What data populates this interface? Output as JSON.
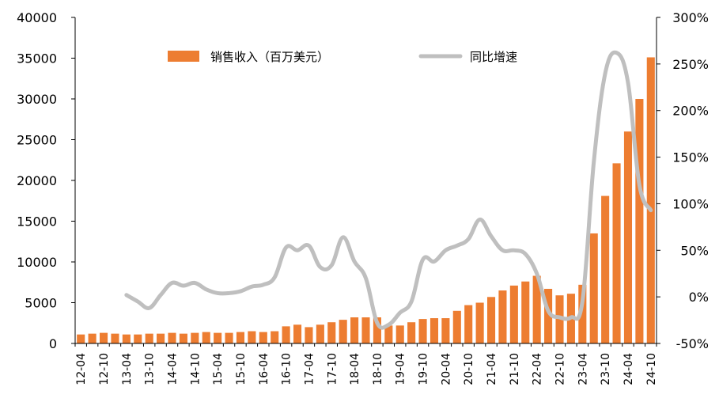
{
  "chart_data": {
    "type": "bar+line",
    "title": "",
    "categories": [
      "12-04",
      "12-07",
      "12-10",
      "13-01",
      "13-04",
      "13-07",
      "13-10",
      "14-01",
      "14-04",
      "14-07",
      "14-10",
      "15-01",
      "15-04",
      "15-07",
      "15-10",
      "16-01",
      "16-04",
      "16-07",
      "16-10",
      "17-01",
      "17-04",
      "17-07",
      "17-10",
      "18-01",
      "18-04",
      "18-07",
      "18-10",
      "19-01",
      "19-04",
      "19-07",
      "19-10",
      "20-01",
      "20-04",
      "20-07",
      "20-10",
      "21-01",
      "21-04",
      "21-07",
      "21-10",
      "22-01",
      "22-04",
      "22-07",
      "22-10",
      "23-01",
      "23-04",
      "23-07",
      "23-10",
      "24-01",
      "24-04",
      "24-07",
      "24-10"
    ],
    "x_tick_labels": [
      "12-04",
      "12-10",
      "13-04",
      "13-10",
      "14-04",
      "14-10",
      "15-04",
      "15-10",
      "16-04",
      "16-10",
      "17-04",
      "17-10",
      "18-04",
      "18-10",
      "19-04",
      "19-10",
      "20-04",
      "20-10",
      "21-04",
      "21-10",
      "22-04",
      "22-10",
      "23-04",
      "23-10",
      "24-04",
      "24-10"
    ],
    "series": [
      {
        "name": "销售收入（百万美元）",
        "kind": "bar",
        "axis": "left",
        "color": "#ED7D31",
        "values": [
          1100,
          1200,
          1300,
          1200,
          1100,
          1100,
          1200,
          1200,
          1300,
          1200,
          1300,
          1400,
          1300,
          1300,
          1400,
          1500,
          1400,
          1500,
          2100,
          2300,
          2000,
          2300,
          2600,
          2900,
          3200,
          3200,
          3200,
          2200,
          2200,
          2600,
          3000,
          3100,
          3100,
          4000,
          4700,
          5000,
          5700,
          6500,
          7100,
          7600,
          8300,
          6700,
          5900,
          6100,
          7200,
          13500,
          18100,
          22100,
          26000,
          30000,
          35100
        ]
      },
      {
        "name": "同比增速",
        "kind": "line",
        "axis": "right",
        "color": "#BFBFBF",
        "values": [
          null,
          null,
          null,
          null,
          2,
          -5,
          -12,
          2,
          15,
          12,
          15,
          8,
          4,
          4,
          6,
          11,
          13,
          21,
          53,
          50,
          55,
          32,
          34,
          64,
          38,
          20,
          -28,
          -30,
          -17,
          -5,
          40,
          38,
          50,
          55,
          62,
          83,
          65,
          50,
          50,
          46,
          25,
          -15,
          -22,
          -22,
          -5,
          145,
          240,
          262,
          230,
          120,
          93
        ]
      }
    ],
    "y_left": {
      "min": 0,
      "max": 40000,
      "ticks": [
        "0",
        "5000",
        "10000",
        "15000",
        "20000",
        "25000",
        "30000",
        "35000",
        "40000"
      ]
    },
    "y_right": {
      "min": -50,
      "max": 300,
      "ticks": [
        "-50%",
        "0%",
        "50%",
        "100%",
        "150%",
        "200%",
        "250%",
        "300%"
      ]
    },
    "legend": {
      "placement": "top",
      "items": [
        "销售收入（百万美元）",
        "同比增速"
      ]
    },
    "grid": false
  }
}
